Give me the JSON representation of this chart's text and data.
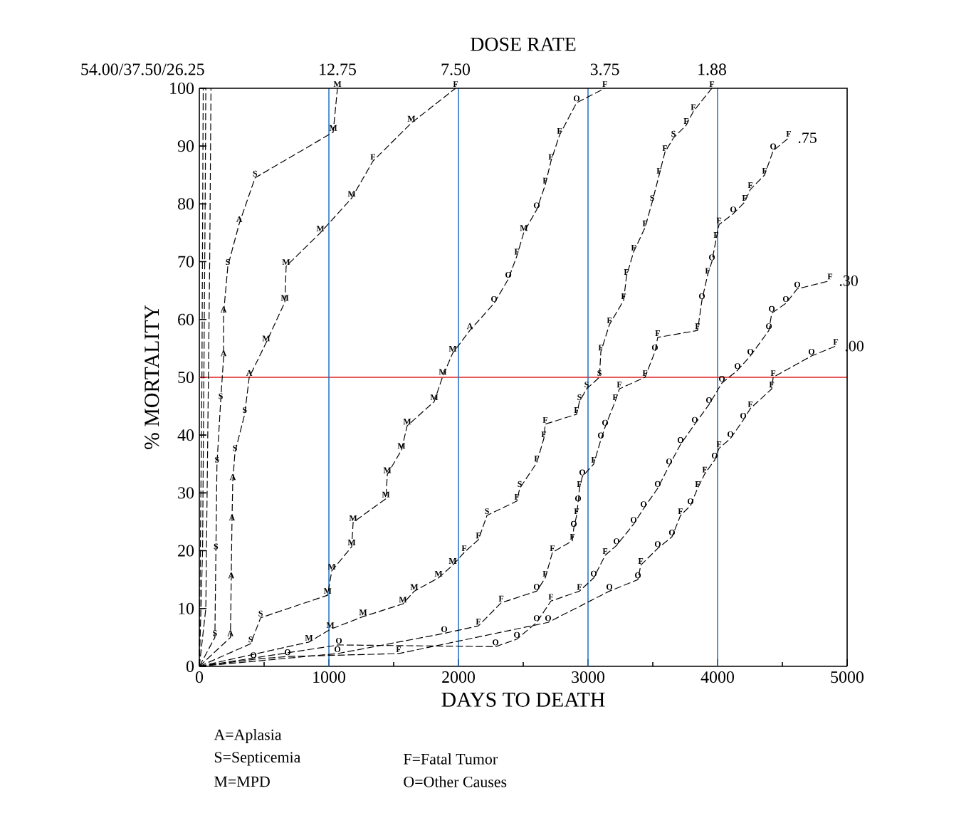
{
  "chart_data": {
    "type": "line",
    "xlabel": "DAYS TO DEATH",
    "ylabel": "% MORTALITY",
    "legend_title": "DOSE RATE",
    "xlim": [
      0,
      5000
    ],
    "xticks": [
      0,
      1000,
      2000,
      3000,
      4000,
      5000
    ],
    "ylim": [
      0,
      100
    ],
    "yticks": [
      0,
      10,
      20,
      30,
      40,
      50,
      60,
      70,
      80,
      90,
      100
    ],
    "grid": false,
    "legend": "top",
    "marker": "none",
    "line_style": "dashed",
    "series": [
      {
        "color": "#000000",
        "x": [
          0,
          10,
          20,
          25,
          30
        ],
        "values": [
          0,
          25,
          50,
          75,
          100
        ],
        "value_labels": [
          null,
          null,
          null,
          null,
          null
        ]
      },
      {
        "color": "#000000",
        "x": [
          0,
          25,
          35,
          45,
          50
        ],
        "values": [
          0,
          20,
          50,
          80,
          100
        ],
        "value_labels": [
          null,
          null,
          null,
          null,
          null
        ]
      },
      {
        "name": "54.00/37.50/26.25",
        "color": "#000000",
        "x": [
          0,
          50,
          65,
          80,
          90
        ],
        "values": [
          0,
          10,
          40,
          70,
          100
        ],
        "value_labels": [
          null,
          null,
          null,
          null,
          null
        ]
      },
      {
        "name": "12.75",
        "color": "#000000",
        "x": [
          0,
          120,
          128,
          136,
          165,
          187,
          187,
          220,
          308,
          430,
          1033,
          1066
        ],
        "values": [
          0,
          5,
          20,
          35,
          46,
          53.4,
          61,
          69.2,
          76.6,
          84.5,
          92.4,
          100
        ],
        "value_labels": [
          null,
          "S",
          "S",
          "S",
          "S",
          "A",
          "A",
          "S",
          "A",
          "S",
          "M",
          "M"
        ]
      },
      {
        "name": "7.50",
        "color": "#000000",
        "x": [
          0,
          240,
          246,
          252,
          258,
          275,
          350,
          385,
          516,
          660,
          670,
          934,
          1176,
          1340,
          1637,
          1978
        ],
        "values": [
          0,
          5,
          15,
          25,
          32,
          37,
          43.6,
          50,
          56,
          63,
          69.2,
          75,
          81,
          87.4,
          94,
          100
        ],
        "value_labels": [
          null,
          "A",
          "A",
          "A",
          "A",
          "S",
          "S",
          "A",
          "M",
          "M",
          "M",
          "M",
          "M",
          "F",
          "M",
          "F"
        ]
      },
      {
        "name": "3.75",
        "color": "#000000",
        "x": [
          0,
          396,
          473,
          990,
          1022,
          1176,
          1187,
          1440,
          1451,
          1560,
          1604,
          1813,
          1879,
          1956,
          2088,
          2275,
          2385,
          2451,
          2505,
          2604,
          2670,
          2714,
          2780,
          2912,
          3130
        ],
        "values": [
          0,
          3.9,
          8.4,
          12.3,
          16.5,
          20.7,
          24.9,
          29,
          33.2,
          37.4,
          41.6,
          45.8,
          50.2,
          54.2,
          58.1,
          62.8,
          67,
          71,
          75.1,
          79,
          83.3,
          87.4,
          91.9,
          97.5,
          100
        ],
        "value_labels": [
          null,
          "S",
          "S",
          "M",
          "M",
          "M",
          "M",
          "M",
          "M",
          "M",
          "M",
          "M",
          "M",
          "M",
          "A",
          "O",
          "O",
          "F",
          "M",
          "O",
          "F",
          "F",
          "F",
          "O",
          "F"
        ]
      },
      {
        "name": "1.88",
        "color": "#000000",
        "x": [
          0,
          846,
          1011,
          1264,
          1571,
          1659,
          1846,
          1956,
          2044,
          2154,
          2220,
          2451,
          2473,
          2604,
          2659,
          2670,
          2912,
          2934,
          2989,
          3088,
          3099,
          3165,
          3275,
          3297,
          3352,
          3440,
          3495,
          3549,
          3593,
          3659,
          3758,
          3813,
          3956
        ],
        "values": [
          0,
          4.2,
          6.4,
          8.6,
          10.8,
          13,
          15.3,
          17.5,
          19.7,
          21.9,
          26.1,
          28.6,
          30.8,
          35.2,
          39.4,
          41.9,
          43.6,
          45.8,
          48,
          50,
          54.4,
          59.1,
          63.3,
          67.5,
          71.7,
          75.9,
          80.3,
          85,
          88.9,
          91.4,
          93.6,
          96,
          100
        ],
        "value_labels": [
          null,
          "M",
          "M",
          "M",
          "M",
          "M",
          "M",
          "M",
          "F",
          "F",
          "S",
          "F",
          "S",
          "F",
          "F",
          "F",
          "F",
          "S",
          "S",
          "S",
          "F",
          "F",
          "F",
          "F",
          "F",
          "F",
          "S",
          "F",
          "F",
          "S",
          "F",
          "F",
          "F"
        ]
      },
      {
        "name": ".75",
        "color": "#000000",
        "x": [
          0,
          1066,
          1890,
          2154,
          2330,
          2604,
          2670,
          2725,
          2879,
          2890,
          2912,
          2923,
          2934,
          2956,
          3044,
          3099,
          3132,
          3209,
          3242,
          3440,
          3516,
          3538,
          3846,
          3879,
          3923,
          3956,
          3989,
          4011,
          4121,
          4209,
          4253,
          4363,
          4429,
          4549
        ],
        "values": [
          0,
          2.2,
          5.7,
          7,
          11,
          13,
          15.3,
          19.7,
          21.7,
          23.9,
          26.1,
          28.3,
          30.8,
          32.8,
          35,
          39.2,
          41.4,
          45.8,
          48,
          50,
          54.4,
          56.9,
          58.1,
          63.3,
          67.7,
          70,
          73.9,
          76.4,
          78.3,
          80.3,
          82.5,
          85,
          89.2,
          91.4
        ],
        "value_labels": [
          null,
          "O",
          "O",
          "F",
          "F",
          "O",
          "F",
          "F",
          "F",
          "O",
          "F",
          "O",
          "F",
          "O",
          "F",
          "O",
          "O",
          "F",
          "F",
          "F",
          "O",
          "F",
          "F",
          "O",
          "F",
          "O",
          "F",
          "F",
          "O",
          "F",
          "F",
          "F",
          "O",
          "F"
        ]
      },
      {
        "name": ".30",
        "color": "#000000",
        "x": [
          0,
          1077,
          2286,
          2451,
          2604,
          2714,
          2934,
          3044,
          3132,
          3220,
          3352,
          3429,
          3538,
          3626,
          3714,
          3824,
          3934,
          4033,
          4154,
          4253,
          4396,
          4418,
          4527,
          4615,
          4868
        ],
        "values": [
          0,
          3.7,
          3.4,
          4.7,
          7.6,
          11.3,
          13,
          15.3,
          19.2,
          20.9,
          24.6,
          27.3,
          30.8,
          34.7,
          38.4,
          41.9,
          45.3,
          49,
          51.2,
          53.7,
          58.1,
          61.1,
          62.8,
          65.3,
          66.7
        ],
        "value_labels": [
          null,
          "O",
          "O",
          "O",
          "O",
          "F",
          "F",
          "O",
          "F",
          "O",
          "O",
          "O",
          "O",
          "O",
          "O",
          "O",
          "O",
          "O",
          "O",
          "O",
          "O",
          "O",
          "O",
          "O",
          "F"
        ]
      },
      {
        "name": ".00",
        "color": "#000000",
        "x": [
          0,
          418,
          681,
          1538,
          2692,
          3165,
          3385,
          3407,
          3538,
          3648,
          3714,
          3791,
          3846,
          3901,
          3978,
          4011,
          4099,
          4198,
          4253,
          4418,
          4429,
          4725,
          4912
        ],
        "values": [
          0,
          1.2,
          1.7,
          2.2,
          7.6,
          13,
          15,
          17.5,
          20.4,
          22.4,
          26.1,
          27.8,
          30.8,
          33.3,
          35.7,
          37.7,
          39.4,
          42.6,
          44.6,
          48,
          50,
          53.7,
          55.4
        ],
        "value_labels": [
          null,
          "O",
          "O",
          "F",
          "O",
          "O",
          "O",
          "F",
          "O",
          "O",
          "F",
          "O",
          "F",
          "F",
          "O",
          "F",
          "O",
          "O",
          "F",
          "F",
          "F",
          "O",
          "F"
        ]
      }
    ],
    "ref_lines": [
      {
        "axis": "y",
        "value": 50,
        "color": "#e02020"
      },
      {
        "axis": "x",
        "value": 1000,
        "color": "#2a78c8"
      },
      {
        "axis": "x",
        "value": 2000,
        "color": "#2a78c8"
      },
      {
        "axis": "x",
        "value": 3000,
        "color": "#2a78c8"
      },
      {
        "axis": "x",
        "value": 4000,
        "color": "#2a78c8"
      }
    ],
    "annotations": [
      "A=Aplasia",
      "S=Septicemia",
      "M=MPD",
      "F=Fatal Tumor",
      "O=Other Causes"
    ]
  }
}
